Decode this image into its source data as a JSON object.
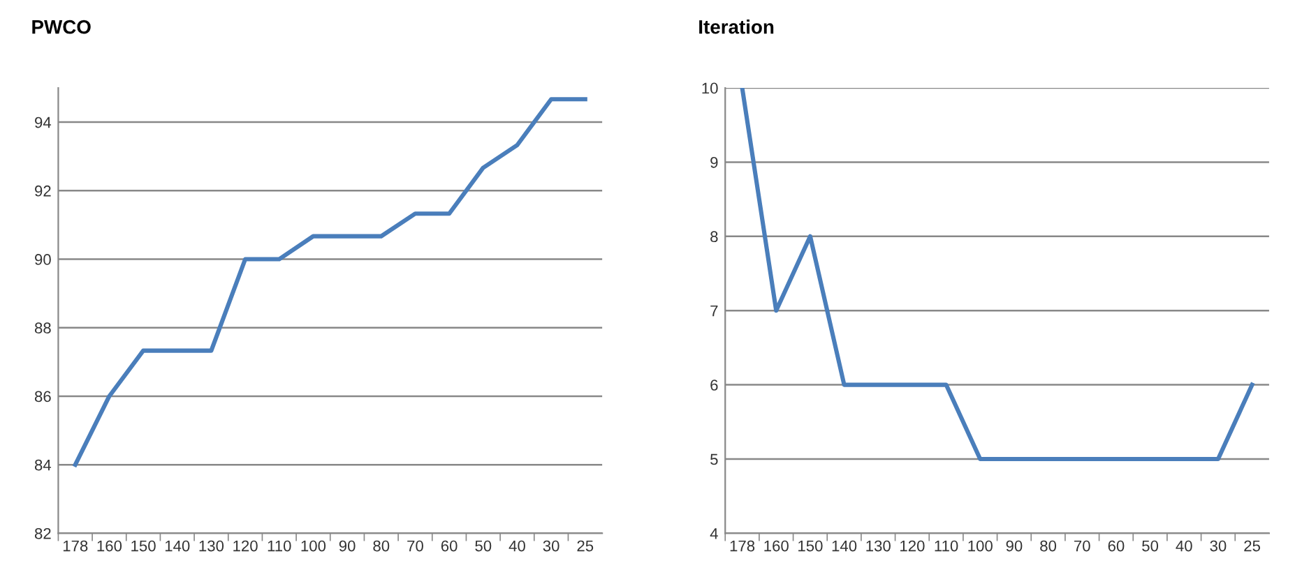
{
  "chart_data": [
    {
      "type": "line",
      "title": "PWCO",
      "categories": [
        "178",
        "160",
        "150",
        "140",
        "130",
        "120",
        "110",
        "100",
        "90",
        "80",
        "70",
        "60",
        "50",
        "40",
        "30",
        "25"
      ],
      "series": [
        {
          "color": "#4a7ebb",
          "values": [
            84,
            86,
            87.33,
            87.33,
            87.33,
            90,
            90,
            90.67,
            90.67,
            90.67,
            91.33,
            91.33,
            92.67,
            93.33,
            94.67,
            94.67
          ]
        }
      ],
      "ylim": [
        82,
        95
      ],
      "yticks": [
        82,
        84,
        86,
        88,
        90,
        92,
        94
      ],
      "grid": "y",
      "marker": "none",
      "line_style": "solid"
    },
    {
      "type": "line",
      "title": "Iteration",
      "categories": [
        "178",
        "160",
        "150",
        "140",
        "130",
        "120",
        "110",
        "100",
        "90",
        "80",
        "70",
        "60",
        "50",
        "40",
        "30",
        "25"
      ],
      "series": [
        {
          "color": "#4a7ebb",
          "values": [
            10,
            7,
            8,
            6,
            6,
            6,
            6,
            5,
            5,
            5,
            5,
            5,
            5,
            5,
            5,
            6
          ]
        }
      ],
      "ylim": [
        4,
        10
      ],
      "yticks": [
        4,
        5,
        6,
        7,
        8,
        9,
        10
      ],
      "grid": "y",
      "marker": "none",
      "line_style": "solid"
    }
  ]
}
